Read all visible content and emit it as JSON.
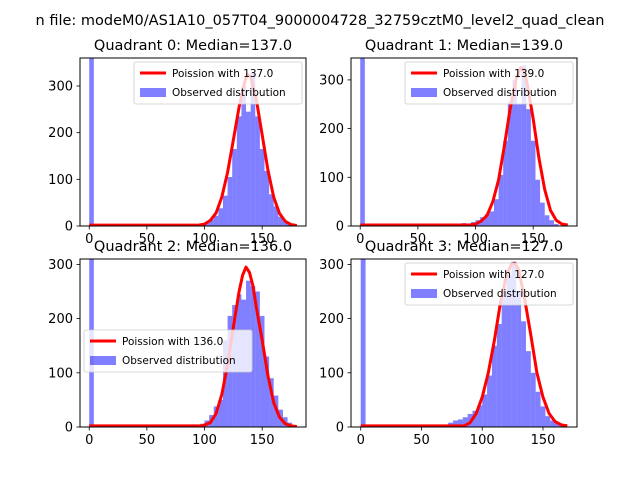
{
  "figure": {
    "suptitle": "n file: modeM0/AS1A10_057T04_9000004728_32759cztM0_level2_quad_clean"
  },
  "colors": {
    "hist": "#0000ff",
    "hist_alpha": 0.5,
    "line": "#ff0000"
  },
  "chart_data": [
    {
      "type": "bar",
      "title": "Quadrant 0: Median=137.0",
      "median": 137.0,
      "xlim": [
        -8,
        188
      ],
      "ylim": [
        0,
        360
      ],
      "xticks": [
        0,
        50,
        100,
        150
      ],
      "yticks": [
        0,
        100,
        200,
        300
      ],
      "legend": {
        "loc": "upper-right",
        "line_label": "Poission with 137.0",
        "hist_label": "Observed distribution"
      },
      "spike": {
        "x": [
          0,
          4
        ],
        "y": 360
      },
      "bins": [
        [
          96,
          100,
          3
        ],
        [
          100,
          104,
          8
        ],
        [
          104,
          108,
          14
        ],
        [
          108,
          112,
          22
        ],
        [
          112,
          116,
          38
        ],
        [
          116,
          120,
          65
        ],
        [
          120,
          124,
          105
        ],
        [
          124,
          128,
          165
        ],
        [
          128,
          132,
          235
        ],
        [
          132,
          136,
          300
        ],
        [
          136,
          140,
          245
        ],
        [
          140,
          144,
          330
        ],
        [
          144,
          148,
          235
        ],
        [
          148,
          152,
          165
        ],
        [
          152,
          156,
          118
        ],
        [
          156,
          160,
          68
        ],
        [
          160,
          164,
          42
        ],
        [
          164,
          168,
          20
        ],
        [
          168,
          172,
          10
        ],
        [
          172,
          176,
          5
        ],
        [
          176,
          180,
          2
        ]
      ],
      "curve": [
        [
          0,
          2
        ],
        [
          95,
          2
        ],
        [
          100,
          4
        ],
        [
          105,
          12
        ],
        [
          110,
          28
        ],
        [
          115,
          62
        ],
        [
          120,
          115
        ],
        [
          125,
          185
        ],
        [
          130,
          255
        ],
        [
          135,
          310
        ],
        [
          137,
          325
        ],
        [
          140,
          320
        ],
        [
          145,
          270
        ],
        [
          150,
          195
        ],
        [
          155,
          120
        ],
        [
          160,
          62
        ],
        [
          165,
          27
        ],
        [
          170,
          10
        ],
        [
          175,
          3
        ],
        [
          180,
          1
        ]
      ]
    },
    {
      "type": "bar",
      "title": "Quadrant 1: Median=139.0",
      "median": 139.0,
      "xlim": [
        -8,
        188
      ],
      "ylim": [
        0,
        345
      ],
      "xticks": [
        0,
        50,
        100,
        150
      ],
      "yticks": [
        0,
        100,
        200,
        300
      ],
      "legend": {
        "loc": "upper-right",
        "line_label": "Poission with 139.0",
        "hist_label": "Observed distribution"
      },
      "spike": {
        "x": [
          0,
          4
        ],
        "y": 345
      },
      "bins": [
        [
          60,
          64,
          3
        ],
        [
          72,
          76,
          4
        ],
        [
          84,
          88,
          4
        ],
        [
          88,
          92,
          6
        ],
        [
          92,
          96,
          5
        ],
        [
          96,
          100,
          8
        ],
        [
          100,
          104,
          12
        ],
        [
          104,
          108,
          18
        ],
        [
          108,
          112,
          24
        ],
        [
          112,
          116,
          30
        ],
        [
          116,
          120,
          55
        ],
        [
          120,
          124,
          105
        ],
        [
          124,
          128,
          175
        ],
        [
          128,
          132,
          255
        ],
        [
          132,
          136,
          300
        ],
        [
          136,
          140,
          250
        ],
        [
          140,
          144,
          330
        ],
        [
          144,
          148,
          240
        ],
        [
          148,
          152,
          175
        ],
        [
          152,
          156,
          95
        ],
        [
          156,
          160,
          48
        ],
        [
          160,
          164,
          22
        ],
        [
          164,
          168,
          12
        ],
        [
          168,
          172,
          4
        ]
      ],
      "curve": [
        [
          0,
          2
        ],
        [
          95,
          2
        ],
        [
          100,
          4
        ],
        [
          105,
          10
        ],
        [
          110,
          22
        ],
        [
          115,
          50
        ],
        [
          120,
          95
        ],
        [
          125,
          165
        ],
        [
          130,
          240
        ],
        [
          135,
          300
        ],
        [
          139,
          325
        ],
        [
          142,
          320
        ],
        [
          145,
          290
        ],
        [
          150,
          220
        ],
        [
          155,
          140
        ],
        [
          160,
          75
        ],
        [
          165,
          32
        ],
        [
          170,
          12
        ],
        [
          175,
          4
        ],
        [
          180,
          2
        ]
      ]
    },
    {
      "type": "bar",
      "title": "Quadrant 2: Median=136.0",
      "median": 136.0,
      "xlim": [
        -8,
        188
      ],
      "ylim": [
        0,
        310
      ],
      "xticks": [
        0,
        50,
        100,
        150
      ],
      "yticks": [
        0,
        100,
        200,
        300
      ],
      "legend": {
        "loc": "center-left",
        "line_label": "Poission with 136.0",
        "hist_label": "Observed distribution"
      },
      "spike": {
        "x": [
          0,
          4
        ],
        "y": 310
      },
      "bins": [
        [
          84,
          88,
          3
        ],
        [
          96,
          100,
          6
        ],
        [
          100,
          104,
          12
        ],
        [
          104,
          108,
          22
        ],
        [
          108,
          112,
          38
        ],
        [
          112,
          116,
          50
        ],
        [
          116,
          120,
          160
        ],
        [
          120,
          124,
          205
        ],
        [
          124,
          128,
          225
        ],
        [
          128,
          132,
          245
        ],
        [
          132,
          136,
          235
        ],
        [
          136,
          140,
          270
        ],
        [
          140,
          144,
          260
        ],
        [
          144,
          148,
          250
        ],
        [
          148,
          152,
          205
        ],
        [
          152,
          156,
          130
        ],
        [
          156,
          160,
          90
        ],
        [
          160,
          164,
          58
        ],
        [
          164,
          168,
          32
        ],
        [
          168,
          172,
          18
        ],
        [
          172,
          176,
          8
        ],
        [
          176,
          180,
          3
        ]
      ],
      "curve": [
        [
          0,
          2
        ],
        [
          98,
          2
        ],
        [
          105,
          8
        ],
        [
          110,
          25
        ],
        [
          115,
          60
        ],
        [
          120,
          115
        ],
        [
          125,
          185
        ],
        [
          130,
          250
        ],
        [
          133,
          280
        ],
        [
          136,
          295
        ],
        [
          139,
          285
        ],
        [
          142,
          260
        ],
        [
          145,
          220
        ],
        [
          150,
          160
        ],
        [
          155,
          95
        ],
        [
          160,
          45
        ],
        [
          165,
          18
        ],
        [
          170,
          6
        ],
        [
          175,
          2
        ],
        [
          180,
          1
        ]
      ]
    },
    {
      "type": "bar",
      "title": "Quadrant 3: Median=127.0",
      "median": 127.0,
      "xlim": [
        -8,
        178
      ],
      "ylim": [
        0,
        310
      ],
      "xticks": [
        0,
        50,
        100,
        150
      ],
      "yticks": [
        0,
        100,
        200,
        300
      ],
      "legend": {
        "loc": "upper-right",
        "line_label": "Poission with 127.0",
        "hist_label": "Observed distribution"
      },
      "spike": {
        "x": [
          0,
          4
        ],
        "y": 310
      },
      "bins": [
        [
          68,
          72,
          4
        ],
        [
          72,
          76,
          8
        ],
        [
          76,
          80,
          12
        ],
        [
          80,
          84,
          14
        ],
        [
          84,
          88,
          18
        ],
        [
          88,
          92,
          24
        ],
        [
          92,
          96,
          30
        ],
        [
          96,
          100,
          40
        ],
        [
          100,
          104,
          60
        ],
        [
          104,
          108,
          95
        ],
        [
          108,
          112,
          150
        ],
        [
          112,
          116,
          190
        ],
        [
          116,
          120,
          250
        ],
        [
          120,
          124,
          280
        ],
        [
          124,
          128,
          305
        ],
        [
          128,
          132,
          250
        ],
        [
          132,
          136,
          195
        ],
        [
          136,
          140,
          140
        ],
        [
          140,
          144,
          100
        ],
        [
          144,
          148,
          65
        ],
        [
          148,
          152,
          38
        ],
        [
          152,
          156,
          20
        ],
        [
          156,
          160,
          12
        ],
        [
          160,
          164,
          8
        ],
        [
          164,
          168,
          4
        ]
      ],
      "curve": [
        [
          0,
          2
        ],
        [
          85,
          2
        ],
        [
          90,
          8
        ],
        [
          95,
          25
        ],
        [
          100,
          55
        ],
        [
          105,
          100
        ],
        [
          110,
          160
        ],
        [
          115,
          230
        ],
        [
          120,
          280
        ],
        [
          124,
          300
        ],
        [
          127,
          302
        ],
        [
          130,
          290
        ],
        [
          135,
          235
        ],
        [
          140,
          170
        ],
        [
          145,
          100
        ],
        [
          150,
          55
        ],
        [
          155,
          25
        ],
        [
          160,
          10
        ],
        [
          165,
          4
        ],
        [
          170,
          2
        ]
      ]
    }
  ]
}
